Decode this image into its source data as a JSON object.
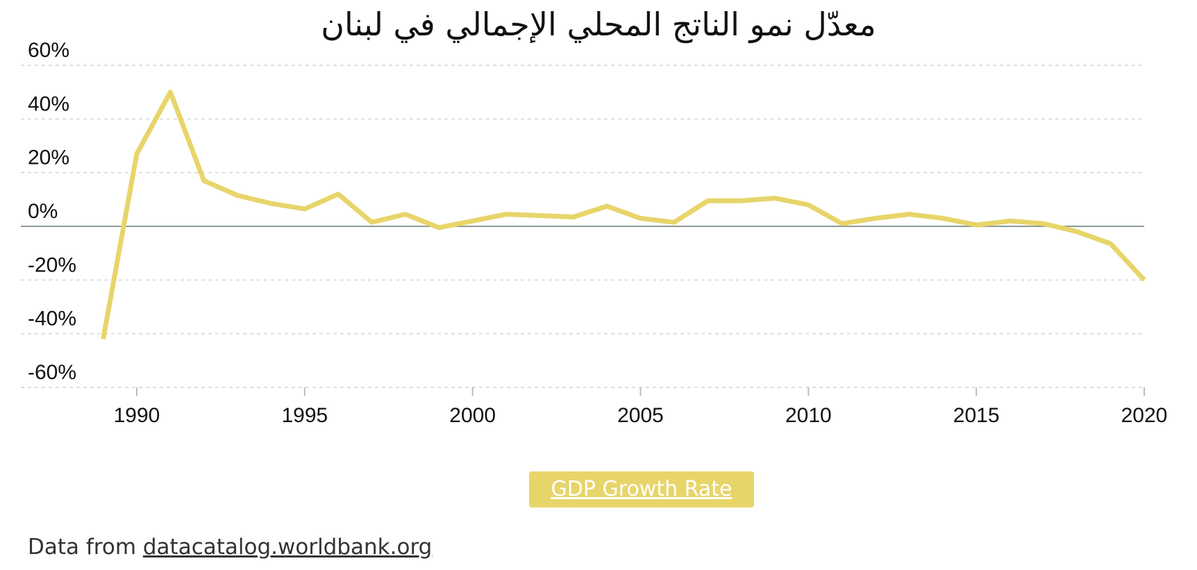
{
  "chart_data": {
    "type": "line",
    "title": "معدّل نمو الناتج المحلي الإجمالي في لبنان",
    "xlabel": "",
    "ylabel": "",
    "xlim": [
      1989,
      2020
    ],
    "ylim": [
      -60,
      60
    ],
    "x_ticks": [
      "1990",
      "1995",
      "2000",
      "2005",
      "2010",
      "2015",
      "2020"
    ],
    "x_tick_values": [
      1990,
      1995,
      2000,
      2005,
      2010,
      2015,
      2020
    ],
    "y_ticks": [
      "60%",
      "40%",
      "20%",
      "0%",
      "-20%",
      "-40%",
      "-60%"
    ],
    "y_tick_values": [
      60,
      40,
      20,
      0,
      -20,
      -40,
      -60
    ],
    "grid": true,
    "legend_position": "bottom-center",
    "series": [
      {
        "name": "GDP Growth Rate",
        "color": "#e8d56a",
        "x": [
          1989,
          1990,
          1991,
          1992,
          1993,
          1994,
          1995,
          1996,
          1997,
          1998,
          1999,
          2000,
          2001,
          2002,
          2003,
          2004,
          2005,
          2006,
          2007,
          2008,
          2009,
          2010,
          2011,
          2012,
          2013,
          2014,
          2015,
          2016,
          2017,
          2018,
          2019,
          2020
        ],
        "values": [
          -42,
          27,
          50,
          17,
          11.5,
          8.5,
          6.5,
          12,
          1.5,
          4.5,
          -0.5,
          2,
          4.5,
          4,
          3.5,
          7.5,
          3,
          1.5,
          9.5,
          9.5,
          10.5,
          8,
          1,
          3,
          4.5,
          3,
          0.5,
          2,
          1,
          -2,
          -6.5,
          -20
        ]
      }
    ]
  },
  "legend": {
    "label": "GDP Growth Rate"
  },
  "source": {
    "prefix": "Data from ",
    "link_text": "datacatalog.worldbank.org"
  }
}
